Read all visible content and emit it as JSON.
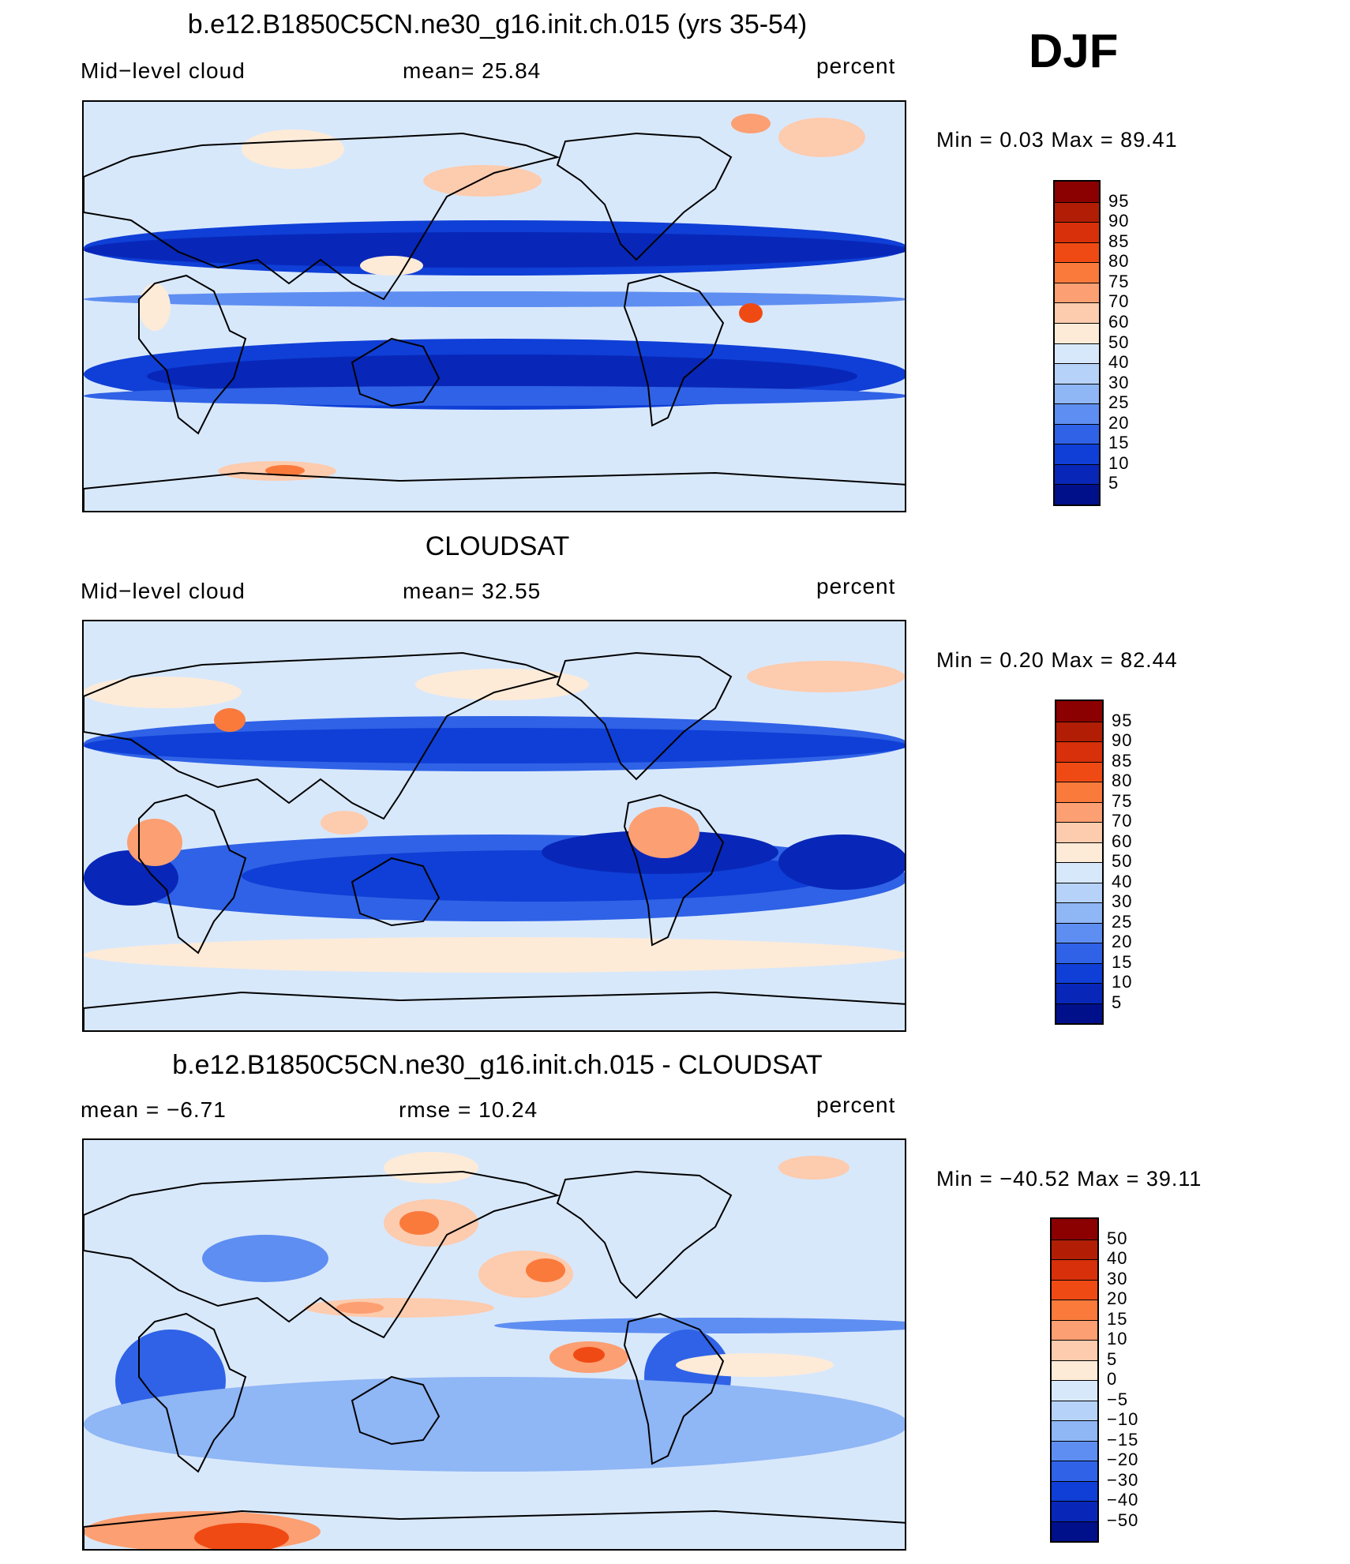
{
  "season": "DJF",
  "panels": [
    {
      "title": "b.e12.B1850C5CN.ne30_g16.init.ch.015 (yrs 35-54)",
      "left_label": "Mid−level  cloud",
      "stat_label": "mean=   25.84",
      "units": "percent",
      "minmax": "Min  =     0.03  Max  =    89.41",
      "scale": "abs"
    },
    {
      "title": "CLOUDSAT",
      "left_label": "Mid−level  cloud",
      "stat_label": "mean=   32.55",
      "units": "percent",
      "minmax": "Min  =     0.20  Max  =    82.44",
      "scale": "abs"
    },
    {
      "title": "b.e12.B1850C5CN.ne30_g16.init.ch.015 - CLOUDSAT",
      "left_label": "mean  =    −6.71",
      "stat_label": "rmse  =    10.24",
      "units": "percent",
      "minmax": "Min  =  −40.52  Max  =    39.11",
      "scale": "diff"
    }
  ],
  "colorbars": {
    "abs": {
      "labels": [
        "95",
        "90",
        "85",
        "80",
        "75",
        "70",
        "60",
        "50",
        "40",
        "30",
        "25",
        "20",
        "15",
        "10",
        "5"
      ],
      "colors": [
        "#8b0000",
        "#b21e05",
        "#d7300a",
        "#f04a14",
        "#fa7a3c",
        "#fc9f72",
        "#fdcbad",
        "#fdebd8",
        "#d8e8fb",
        "#b7d2f8",
        "#8fb6f5",
        "#5e8ef1",
        "#2f62e6",
        "#0f3fd6",
        "#0827b8",
        "#000f8a"
      ]
    },
    "diff": {
      "labels": [
        "50",
        "40",
        "30",
        "20",
        "15",
        "10",
        "5",
        "0",
        "−5",
        "−10",
        "−15",
        "−20",
        "−30",
        "−40",
        "−50"
      ],
      "colors": [
        "#8b0000",
        "#b21e05",
        "#d7300a",
        "#f04a14",
        "#fa7a3c",
        "#fc9f72",
        "#fdcbad",
        "#fdebd8",
        "#d8e8fb",
        "#b7d2f8",
        "#8fb6f5",
        "#5e8ef1",
        "#2f62e6",
        "#0f3fd6",
        "#0827b8",
        "#000f8a"
      ]
    }
  }
}
